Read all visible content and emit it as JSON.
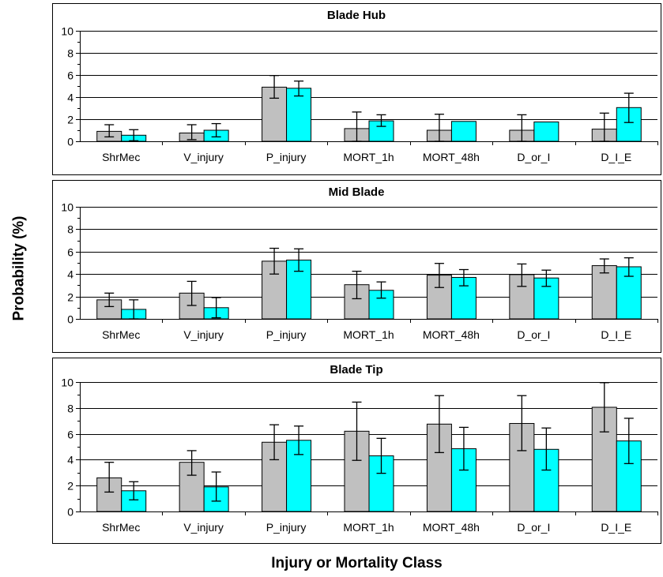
{
  "ylabel": "Probability (%)",
  "xlabel": "Injury or Mortality Class",
  "colors": {
    "series_a": "#c0c0c0",
    "series_b": "#00ffff",
    "panel_border": "#000000"
  },
  "chart_data": [
    {
      "type": "bar",
      "title": "Blade Hub",
      "categories": [
        "ShrMec",
        "V_injury",
        "P_injury",
        "MORT_1h",
        "MORT_48h",
        "D_or_I",
        "D_I_E"
      ],
      "ylim": [
        0,
        10
      ],
      "yticks": [
        0,
        2,
        4,
        6,
        8,
        10
      ],
      "grid": true,
      "series": [
        {
          "values": [
            0.9,
            0.75,
            4.9,
            1.15,
            1.0,
            1.0,
            1.1
          ],
          "err_low": [
            0.4,
            0.15,
            3.9,
            0.0,
            0.0,
            0.0,
            0.0
          ],
          "err_high": [
            1.5,
            1.5,
            5.95,
            2.65,
            2.45,
            2.4,
            2.55
          ]
        },
        {
          "values": [
            0.55,
            1.0,
            4.8,
            1.85,
            1.8,
            1.75,
            3.05
          ],
          "err_low": [
            0.05,
            0.4,
            4.1,
            1.35,
            null,
            null,
            1.7
          ],
          "err_high": [
            1.05,
            1.6,
            5.45,
            2.4,
            null,
            null,
            4.35
          ]
        }
      ]
    },
    {
      "type": "bar",
      "title": "Mid Blade",
      "categories": [
        "ShrMec",
        "V_injury",
        "P_injury",
        "MORT_1h",
        "MORT_48h",
        "D_or_I",
        "D_I_E"
      ],
      "ylim": [
        0,
        10
      ],
      "yticks": [
        0,
        2,
        4,
        6,
        8,
        10
      ],
      "grid": true,
      "series": [
        {
          "values": [
            1.7,
            2.3,
            5.15,
            3.05,
            3.9,
            3.95,
            4.75
          ],
          "err_low": [
            1.1,
            1.2,
            4.0,
            1.8,
            2.8,
            2.9,
            4.1
          ],
          "err_high": [
            2.3,
            3.35,
            6.3,
            4.25,
            4.95,
            4.9,
            5.35
          ]
        },
        {
          "values": [
            0.85,
            1.0,
            5.25,
            2.55,
            3.7,
            3.65,
            4.65
          ],
          "err_low": [
            0.0,
            0.1,
            4.25,
            1.85,
            2.95,
            2.9,
            3.8
          ],
          "err_high": [
            1.7,
            1.9,
            6.25,
            3.3,
            4.4,
            4.35,
            5.45
          ]
        }
      ]
    },
    {
      "type": "bar",
      "title": "Blade Tip",
      "categories": [
        "ShrMec",
        "V_injury",
        "P_injury",
        "MORT_1h",
        "MORT_48h",
        "D_or_I",
        "D_I_E"
      ],
      "ylim": [
        0,
        10
      ],
      "yticks": [
        0,
        2,
        4,
        6,
        8,
        10
      ],
      "grid": true,
      "series": [
        {
          "values": [
            2.6,
            3.8,
            5.35,
            6.2,
            6.75,
            6.8,
            8.05
          ],
          "err_low": [
            1.5,
            2.8,
            4.0,
            3.95,
            4.55,
            4.7,
            6.15
          ],
          "err_high": [
            3.8,
            4.7,
            6.7,
            8.45,
            8.95,
            8.95,
            9.95
          ]
        },
        {
          "values": [
            1.6,
            1.9,
            5.5,
            4.3,
            4.85,
            4.8,
            5.45
          ],
          "err_low": [
            0.9,
            0.8,
            4.4,
            2.95,
            3.2,
            3.2,
            3.7
          ],
          "err_high": [
            2.3,
            3.05,
            6.6,
            5.65,
            6.5,
            6.45,
            7.2
          ]
        }
      ]
    }
  ]
}
